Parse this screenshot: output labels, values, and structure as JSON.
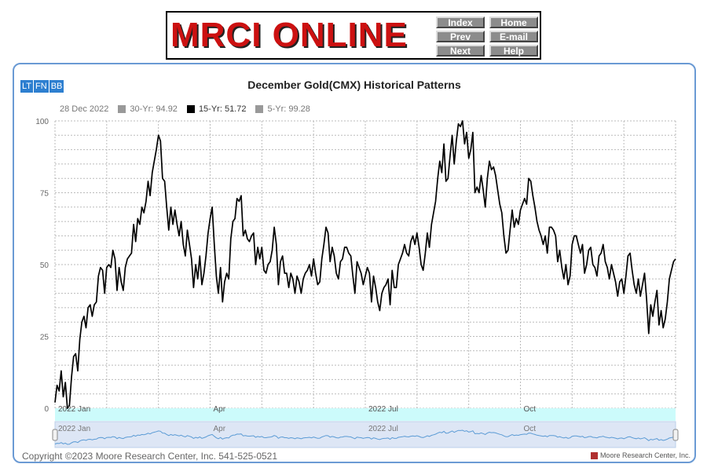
{
  "banner": {
    "logo_text": "MRCI ONLINE",
    "nav": [
      {
        "label": "Index"
      },
      {
        "label": "Home"
      },
      {
        "label": "Prev"
      },
      {
        "label": "E-mail"
      },
      {
        "label": "Next"
      },
      {
        "label": "Help"
      }
    ]
  },
  "range_buttons": [
    "LT",
    "FN",
    "BB"
  ],
  "legend": {
    "date": "28 Dec 2022",
    "items": [
      {
        "label": "30-Yr: 94.92",
        "color": "#999999"
      },
      {
        "label": "15-Yr: 51.72",
        "color": "#000000"
      },
      {
        "label": "5-Yr: 99.28",
        "color": "#999999"
      }
    ]
  },
  "footer": {
    "copyright": "Copyright ©2023 Moore Research Center, Inc. 541-525-0521",
    "brand": "Moore Research Center, Inc."
  },
  "colors": {
    "line": "#000000",
    "panel_border": "#6a9ad4",
    "navigator_fill": "#dde6f5",
    "navigator_line": "#5b9bd5",
    "band": "#ccfbfb"
  },
  "chart_data": {
    "type": "line",
    "title": "December Gold(CMX) Historical Patterns",
    "xlabel": "",
    "ylabel": "",
    "ylim": [
      0,
      100
    ],
    "yticks": [
      0,
      25,
      50,
      75,
      100
    ],
    "xticks": [
      "2022 Jan",
      "Apr",
      "2022 Jul",
      "Oct"
    ],
    "grid": true,
    "series": [
      {
        "name": "15-Yr",
        "x_range": [
          "2022-01-01",
          "2022-12-28"
        ],
        "values": [
          2,
          8,
          6,
          13,
          4,
          9,
          0,
          1,
          11,
          18,
          19,
          13,
          24,
          30,
          32,
          28,
          35,
          36,
          32,
          36,
          37,
          46,
          49,
          48,
          40,
          49,
          50,
          49,
          55,
          52,
          41,
          49,
          44,
          41,
          49,
          52,
          53,
          54,
          64,
          58,
          66,
          64,
          70,
          68,
          72,
          79,
          74,
          82,
          86,
          90,
          95,
          93,
          80,
          79,
          70,
          62,
          70,
          64,
          69,
          64,
          60,
          65,
          57,
          53,
          62,
          57,
          52,
          42,
          50,
          45,
          53,
          43,
          47,
          53,
          61,
          66,
          70,
          57,
          46,
          40,
          49,
          37,
          44,
          47,
          45,
          59,
          65,
          66,
          73,
          72,
          74,
          60,
          62,
          59,
          58,
          60,
          61,
          50,
          56,
          52,
          56,
          48,
          47,
          50,
          51,
          55,
          63,
          57,
          43,
          51,
          53,
          47,
          47,
          42,
          47,
          45,
          40,
          46,
          44,
          40,
          45,
          47,
          48,
          50,
          46,
          52,
          47,
          43,
          44,
          52,
          57,
          63,
          61,
          51,
          56,
          53,
          47,
          45,
          51,
          52,
          56,
          56,
          54,
          53,
          46,
          40,
          51,
          49,
          47,
          43,
          46,
          49,
          47,
          37,
          46,
          42,
          37,
          34,
          40,
          42,
          43,
          45,
          36,
          48,
          42,
          42,
          50,
          52,
          54,
          57,
          54,
          53,
          58,
          60,
          57,
          61,
          56,
          50,
          48,
          54,
          61,
          56,
          64,
          68,
          72,
          80,
          86,
          82,
          92,
          79,
          80,
          88,
          95,
          85,
          93,
          99,
          98,
          100,
          92,
          96,
          87,
          90,
          96,
          75,
          77,
          75,
          81,
          76,
          70,
          80,
          86,
          83,
          84,
          81,
          76,
          71,
          68,
          60,
          54,
          55,
          62,
          69,
          63,
          66,
          64,
          69,
          71,
          73,
          71,
          80,
          79,
          74,
          70,
          65,
          62,
          60,
          57,
          60,
          54,
          63,
          63,
          62,
          60,
          51,
          55,
          49,
          45,
          50,
          43,
          46,
          57,
          60,
          60,
          57,
          54,
          57,
          47,
          50,
          55,
          56,
          50,
          49,
          46,
          53,
          54,
          57,
          51,
          49,
          45,
          50,
          47,
          44,
          39,
          44,
          45,
          40,
          46,
          53,
          54,
          48,
          43,
          40,
          45,
          39,
          43,
          47,
          38,
          26,
          36,
          32,
          37,
          41,
          29,
          34,
          28,
          31,
          37,
          45,
          48,
          51,
          52
        ]
      }
    ],
    "navigator": {
      "labels": [
        "2022 Jan",
        "Apr",
        "2022 Jul",
        "Oct"
      ]
    }
  }
}
